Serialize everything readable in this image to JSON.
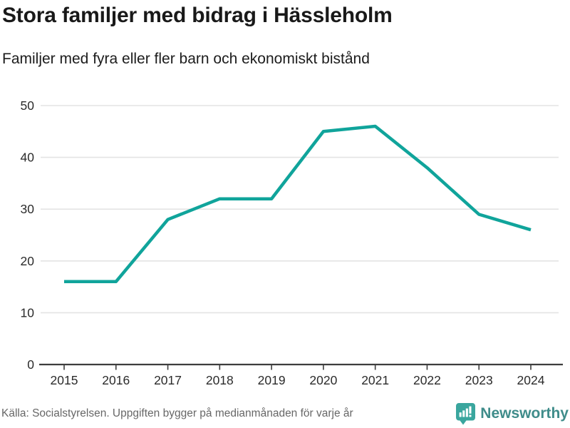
{
  "header": {
    "title": "Stora familjer med bidrag i Hässleholm",
    "subtitle": "Familjer med fyra eller fler barn och ekonomiskt bistånd"
  },
  "chart_data": {
    "type": "line",
    "title": "Stora familjer med bidrag i Hässleholm",
    "subtitle": "Familjer med fyra eller fler barn och ekonomiskt bistånd",
    "x": [
      "2015",
      "2016",
      "2017",
      "2018",
      "2019",
      "2020",
      "2021",
      "2022",
      "2023",
      "2024"
    ],
    "series": [
      {
        "name": "Familjer med fyra eller fler barn och ekonomiskt bistånd",
        "values": [
          16,
          16,
          28,
          32,
          32,
          45,
          46,
          38,
          29,
          26
        ]
      }
    ],
    "xlabel": "",
    "ylabel": "",
    "ylim": [
      0,
      50
    ],
    "yticks": [
      0,
      10,
      20,
      30,
      40,
      50
    ],
    "grid": true,
    "legend_position": "none",
    "line_color": "#10a49b"
  },
  "footer": {
    "source": "Källa: Socialstyrelsen. Uppgiften bygger på medianmånaden för varje år",
    "brand": "Newsworthy"
  },
  "colors": {
    "line": "#10a49b",
    "grid": "#e4e4e4",
    "axis": "#3d3d3d",
    "tick_text": "#2b2b2b",
    "muted": "#676767",
    "logo_icon": "#3aa69e",
    "logo_text": "#3f8c8a",
    "background": "#ffffff"
  }
}
